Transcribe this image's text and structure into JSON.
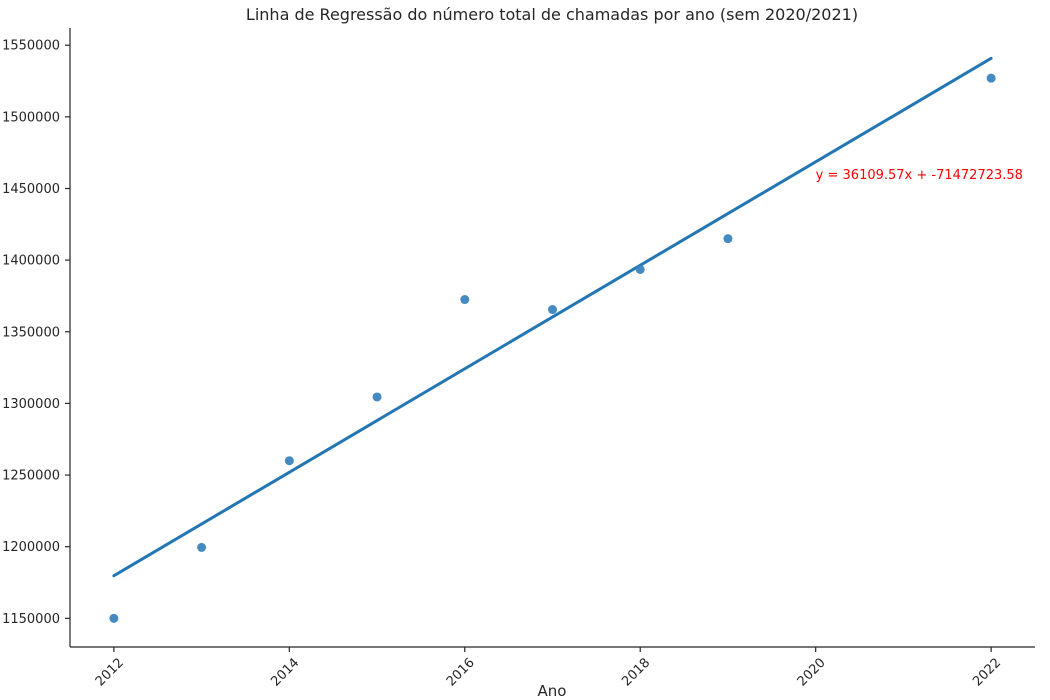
{
  "chart_data": {
    "type": "scatter",
    "title": "Linha de Regressão do número total de chamadas por ano (sem 2020/2021)",
    "xlabel": "Ano",
    "ylabel": "",
    "xlim": [
      2011.5,
      2022.5
    ],
    "ylim": [
      1130000,
      1562000
    ],
    "x_ticks": [
      2012,
      2014,
      2016,
      2018,
      2020,
      2022
    ],
    "x_tick_labels": [
      "2012",
      "2014",
      "2016",
      "2018",
      "2020",
      "2022"
    ],
    "y_ticks": [
      1150000,
      1200000,
      1250000,
      1300000,
      1350000,
      1400000,
      1450000,
      1500000,
      1550000
    ],
    "y_tick_labels": [
      "1150000",
      "1200000",
      "1250000",
      "1300000",
      "1350000",
      "1400000",
      "1450000",
      "1500000",
      "1550000"
    ],
    "grid": false,
    "series": [
      {
        "x": [
          2012,
          2013,
          2014,
          2015,
          2016,
          2017,
          2018,
          2019,
          2022
        ],
        "y": [
          1150000,
          1199500,
          1260000,
          1304500,
          1372500,
          1365500,
          1393500,
          1415000,
          1527000
        ]
      }
    ],
    "regression": {
      "slope": 36109.57,
      "intercept": -71472723.58,
      "x_range": [
        2012,
        2022
      ]
    },
    "annotation": {
      "text": "y = 36109.57x + -71472723.58",
      "x": 2020,
      "y": 1460000
    },
    "colors": {
      "points": "#3b84bd",
      "line": "#2276b3",
      "annotation": "#ff0000",
      "axis": "#262626"
    }
  }
}
